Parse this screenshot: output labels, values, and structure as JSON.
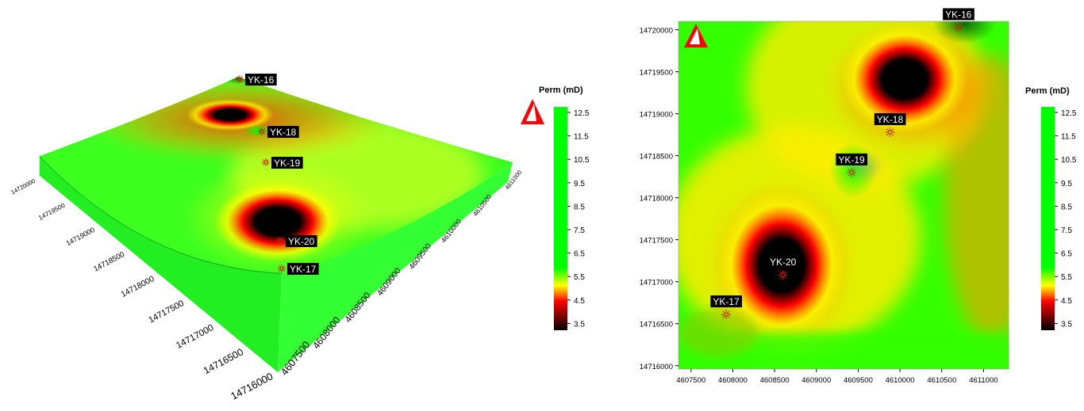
{
  "colorbar": {
    "title": "Perm (mD)",
    "ticks": [
      "12.5",
      "11.5",
      "10.5",
      "9.5",
      "8.5",
      "7.5",
      "6.5",
      "5.5",
      "4.5",
      "3.5"
    ],
    "colors": {
      "high": "#00ff00",
      "mid": "#ffff00",
      "low": "#ff0000",
      "min": "#000000"
    }
  },
  "chart_data": [
    {
      "type": "heatmap",
      "title": "",
      "view": "3d",
      "x_ticks": [
        "4607500",
        "4608000",
        "4608500",
        "4609000",
        "4609500",
        "4610000",
        "4610500",
        "4611000"
      ],
      "y_ticks": [
        "14716000",
        "14716500",
        "14717000",
        "14717500",
        "14718000",
        "14718500",
        "14719000",
        "14719500",
        "14720000"
      ],
      "legend": "right",
      "wells": [
        {
          "name": "YK-16",
          "x": 4610700,
          "y": 14720030
        },
        {
          "name": "YK-18",
          "x": 4609880,
          "y": 14718780
        },
        {
          "name": "YK-19",
          "x": 4609420,
          "y": 14718300
        },
        {
          "name": "YK-20",
          "x": 4608600,
          "y": 14717080
        },
        {
          "name": "YK-17",
          "x": 4607920,
          "y": 14716610
        }
      ]
    },
    {
      "type": "heatmap",
      "title": "",
      "view": "map",
      "xlim": [
        4607350,
        4611300
      ],
      "ylim": [
        14715960,
        14720100
      ],
      "x_ticks": [
        "4607500",
        "4608000",
        "4608500",
        "4609000",
        "4609500",
        "4610000",
        "4610500",
        "4611000"
      ],
      "y_ticks": [
        "14716000",
        "14716500",
        "14717000",
        "14717500",
        "14718000",
        "14718500",
        "14719000",
        "14719500",
        "14720000"
      ],
      "grid": false,
      "legend": "right",
      "wells": [
        {
          "name": "YK-16",
          "x": 4610700,
          "y": 14720030
        },
        {
          "name": "YK-18",
          "x": 4609880,
          "y": 14718780
        },
        {
          "name": "YK-19",
          "x": 4609420,
          "y": 14718300
        },
        {
          "name": "YK-20",
          "x": 4608600,
          "y": 14717080
        },
        {
          "name": "YK-17",
          "x": 4607920,
          "y": 14716610
        }
      ]
    }
  ]
}
